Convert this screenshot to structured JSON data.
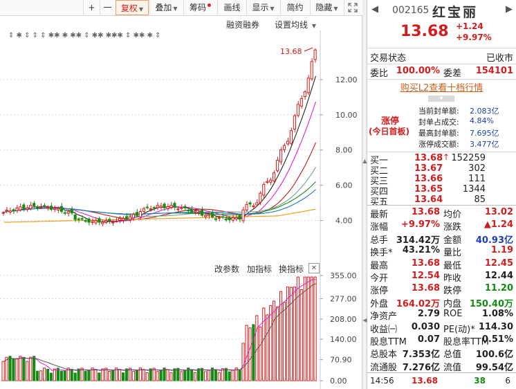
{
  "toolbar": {
    "plus": "+",
    "minus": "一",
    "fuquan": "复权",
    "diejia": "叠加",
    "chouma": "筹码",
    "huaxian": "画线",
    "xianshi": "显示",
    "jianyue": "简约",
    "yincang": "隐藏"
  },
  "sub_toolbar": {
    "margin_trading": "融资融券",
    "ma_settings": "设置均线"
  },
  "kline": {
    "y_ticks": [
      "12.00",
      "10.00",
      "8.00",
      "6.00",
      "4.00"
    ],
    "high_label": "13.68",
    "marker_row": "⇕ ✱ ⇕ ⇕ ⇕ ✱✱ ✱ ✱✱ ⇕ ✱✱ ✱✱✱ ⇕ ✱✱ ✱ ⇕"
  },
  "volume": {
    "tools": [
      "改参数",
      "加指标",
      "换指标"
    ],
    "close": "✕",
    "y_ticks": [
      "355.00",
      "277.00",
      "208.00",
      "140.00",
      "70.90",
      "0.00"
    ]
  },
  "quote": {
    "code": "002165",
    "name": "红宝丽",
    "price": "13.68",
    "change": "+1.24",
    "change_pct": "+9.97%",
    "trade_status_label": "交易状态",
    "trade_status": "已收市",
    "weibi_label": "委比",
    "weibi": "100.00%",
    "weicha_label": "委差",
    "weicha": "154101",
    "l2_link": "购买L2查看十档行情",
    "limit_up": {
      "title": "涨停",
      "subtitle": "(今日首板)",
      "items": [
        {
          "label": "当前封单额:",
          "value": "2.083亿"
        },
        {
          "label": "封单占成交:",
          "value": "4.84%"
        },
        {
          "label": "最高封单额:",
          "value": "7.695亿"
        },
        {
          "label": "涨停成交额:",
          "value": "3.477亿"
        }
      ]
    },
    "bids": [
      {
        "label": "买一",
        "price": "13.68",
        "arrow": "↑",
        "volume": "152259"
      },
      {
        "label": "买二",
        "price": "13.67",
        "arrow": "",
        "volume": "302"
      },
      {
        "label": "买三",
        "price": "13.66",
        "arrow": "",
        "volume": "111"
      },
      {
        "label": "买四",
        "price": "13.65",
        "arrow": "",
        "volume": "1344"
      },
      {
        "label": "买五",
        "price": "13.64",
        "arrow": "",
        "volume": "85"
      }
    ],
    "stats": [
      {
        "l1": "最新",
        "v1": "13.68",
        "c1": "red",
        "l2": "均价",
        "v2": "13.02",
        "c2": "red"
      },
      {
        "l1": "涨幅",
        "v1": "+9.97%",
        "c1": "red",
        "l2": "涨跌",
        "v2": "▲1.24",
        "c2": "red"
      },
      {
        "l1": "总手",
        "v1": "314.42万",
        "c1": "",
        "l2": "金额",
        "v2": "40.93亿",
        "c2": "blue"
      },
      {
        "l1": "换手*",
        "v1": "43.21%",
        "c1": "",
        "l2": "量比",
        "v2": "1.19",
        "c2": "red"
      },
      {
        "l1": "最高",
        "v1": "13.68",
        "c1": "red",
        "l2": "最低",
        "v2": "12.45",
        "c2": "red"
      },
      {
        "l1": "今开",
        "v1": "12.54",
        "c1": "red",
        "l2": "昨收",
        "v2": "12.44",
        "c2": ""
      },
      {
        "l1": "涨停",
        "v1": "13.68",
        "c1": "red",
        "l2": "跌停",
        "v2": "11.20",
        "c2": "green"
      },
      {
        "l1": "外盘",
        "v1": "164.02万",
        "c1": "red",
        "l2": "内盘",
        "v2": "150.40万",
        "c2": "green"
      },
      {
        "l1": "净资产",
        "v1": "2.79",
        "c1": "",
        "l2": "ROE",
        "v2": "1.08%",
        "c2": ""
      },
      {
        "l1": "收益㈠",
        "v1": "0.030",
        "c1": "",
        "l2": "PE(动)*",
        "v2": "114.30",
        "c2": ""
      },
      {
        "l1": "股息TTM",
        "v1": "0.07",
        "c1": "",
        "l2": "股息率TTM",
        "v2": "0.51%",
        "c2": ""
      },
      {
        "l1": "总股本",
        "v1": "7.353亿",
        "c1": "",
        "l2": "总值",
        "v2": "100.6亿",
        "c2": ""
      },
      {
        "l1": "流通股",
        "v1": "7.276亿",
        "c1": "",
        "l2": "流值",
        "v2": "99.54亿",
        "c2": ""
      }
    ],
    "tick": {
      "time": "14:56",
      "price": "13.68",
      "volume": "38",
      "count": "6"
    }
  },
  "colors": {
    "up": "#d41c1c",
    "down": "#148c14",
    "ma_white": "#222222",
    "ma5": "#e01ec8",
    "ma10": "#c01818",
    "ma20": "#148c14",
    "ma30": "#1a78c8",
    "ma60": "#e8a020"
  }
}
